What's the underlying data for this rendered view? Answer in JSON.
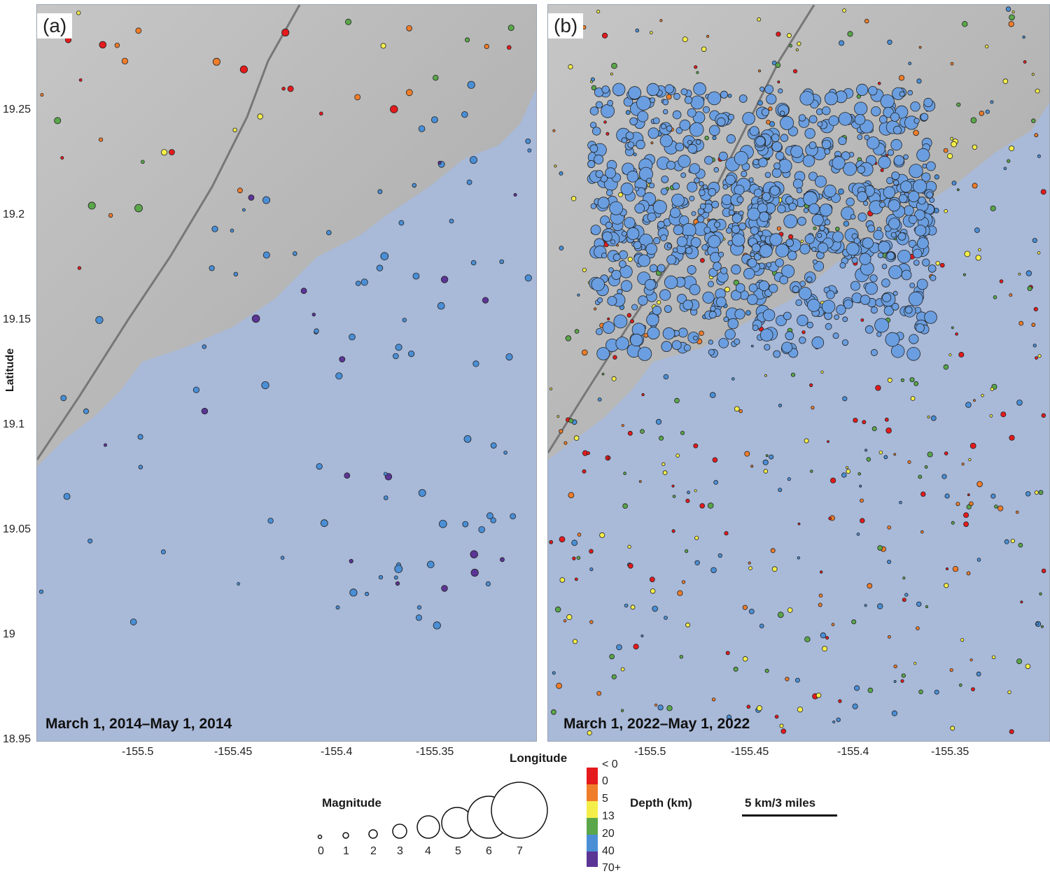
{
  "panels": [
    {
      "label": "(a)",
      "date_range": "March 1, 2014–May 1, 2014"
    },
    {
      "label": "(b)",
      "date_range": "March 1, 2022–May 1, 2022"
    }
  ],
  "axes": {
    "ylabel": "Latitude",
    "xlabel": "Longitude",
    "lat_ticks": [
      "19.25",
      "19.2",
      "19.15",
      "19.1",
      "19.05",
      "19",
      "18.95"
    ],
    "lon_ticks_a": [
      "-155.5",
      "-155.45",
      "-155.4",
      "-155.35"
    ],
    "lon_ticks_b": [
      "-155.5",
      "-155.45",
      "-155.4",
      "-155.35"
    ]
  },
  "legend": {
    "magnitude_title": "Magnitude",
    "magnitudes": [
      "0",
      "1",
      "2",
      "3",
      "4",
      "5",
      "6",
      "7"
    ],
    "depth_title": "Depth (km)",
    "depth_bins": [
      {
        "label": "< 0",
        "color": "#e41a1c"
      },
      {
        "label": "0",
        "color": "#f07d2a"
      },
      {
        "label": "5",
        "color": "#f4ee4a"
      },
      {
        "label": "13",
        "color": "#5aa64a"
      },
      {
        "label": "20",
        "color": "#4a8fd6"
      },
      {
        "label": "40",
        "color": "#5b3596"
      },
      {
        "label": "70+",
        "color": "#5b3596"
      }
    ],
    "scale_bar": "5 km/3 miles"
  },
  "colors": {
    "land": "#bdbdbd",
    "ocean": "#a9b9d8",
    "shallow_cluster": "#6a9ee0"
  }
}
